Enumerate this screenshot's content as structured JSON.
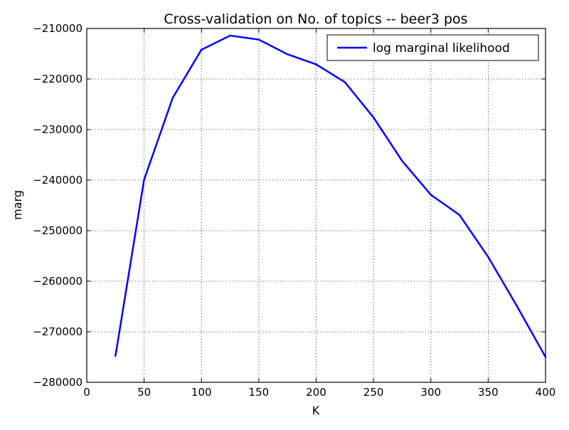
{
  "chart_data": {
    "type": "line",
    "title": "Cross-validation on No. of topics -- beer3 pos",
    "xlabel": "K",
    "ylabel": "marg",
    "xlim": [
      0,
      400
    ],
    "ylim": [
      -280000,
      -210000
    ],
    "x_ticks": [
      0,
      50,
      100,
      150,
      200,
      250,
      300,
      350,
      400
    ],
    "y_ticks": [
      -210000,
      -220000,
      -230000,
      -240000,
      -250000,
      -260000,
      -270000,
      -280000
    ],
    "x_tick_labels": [
      "0",
      "50",
      "100",
      "150",
      "200",
      "250",
      "300",
      "350",
      "400"
    ],
    "y_tick_labels": [
      "−210000",
      "−220000",
      "−230000",
      "−240000",
      "−250000",
      "−260000",
      "−270000",
      "−280000"
    ],
    "grid": true,
    "legend_position": "top-right",
    "series": [
      {
        "name": "log marginal likelihood",
        "color": "#0000ff",
        "x": [
          25,
          50,
          75,
          100,
          125,
          150,
          175,
          200,
          225,
          250,
          275,
          300,
          325,
          350,
          375,
          400
        ],
        "y": [
          -274800,
          -239900,
          -223700,
          -214200,
          -211400,
          -212200,
          -215100,
          -217100,
          -220600,
          -227600,
          -236200,
          -242900,
          -246900,
          -255200,
          -264900,
          -275000
        ]
      }
    ]
  }
}
